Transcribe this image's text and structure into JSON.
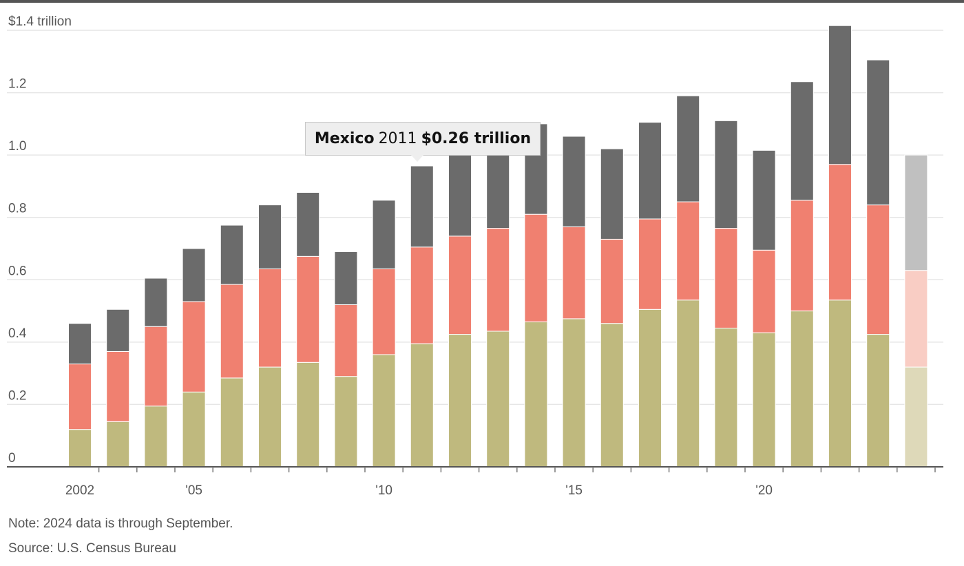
{
  "chart_data": {
    "type": "bar",
    "stacked": true,
    "y_tick_labels": [
      "0",
      "0.2",
      "0.4",
      "0.6",
      "0.8",
      "1.0",
      "1.2",
      "$1.4 trillion"
    ],
    "y_ticks": [
      0,
      0.2,
      0.4,
      0.6,
      0.8,
      1.0,
      1.2,
      1.4
    ],
    "ylim": [
      0,
      1.4
    ],
    "x_tick_labels": [
      {
        "year": 2002,
        "label": "2002"
      },
      {
        "year": 2005,
        "label": "'05"
      },
      {
        "year": 2010,
        "label": "'10"
      },
      {
        "year": 2015,
        "label": "'15"
      },
      {
        "year": 2020,
        "label": "'20"
      }
    ],
    "categories": [
      2002,
      2003,
      2004,
      2005,
      2006,
      2007,
      2008,
      2009,
      2010,
      2011,
      2012,
      2013,
      2014,
      2015,
      2016,
      2017,
      2018,
      2019,
      2020,
      2021,
      2022,
      2023,
      2024
    ],
    "series": [
      {
        "values": [
          0.12,
          0.145,
          0.195,
          0.24,
          0.285,
          0.32,
          0.335,
          0.29,
          0.36,
          0.395,
          0.425,
          0.435,
          0.465,
          0.475,
          0.46,
          0.505,
          0.535,
          0.445,
          0.43,
          0.5,
          0.535,
          0.425,
          0.32
        ],
        "color": "#bfb97e",
        "partial_color": "#ded9b9"
      },
      {
        "values": [
          0.21,
          0.225,
          0.255,
          0.29,
          0.3,
          0.315,
          0.34,
          0.23,
          0.275,
          0.31,
          0.315,
          0.33,
          0.345,
          0.295,
          0.27,
          0.29,
          0.315,
          0.32,
          0.265,
          0.355,
          0.435,
          0.415,
          0.31
        ],
        "color": "#f08070",
        "partial_color": "#f9cdc4"
      },
      {
        "values": [
          0.13,
          0.135,
          0.155,
          0.17,
          0.19,
          0.205,
          0.205,
          0.17,
          0.22,
          0.26,
          0.265,
          0.25,
          0.29,
          0.29,
          0.29,
          0.31,
          0.34,
          0.345,
          0.32,
          0.38,
          0.445,
          0.465,
          0.37
        ],
        "color": "#6b6b6b",
        "partial_color": "#c0c0c0"
      }
    ],
    "partial_year": 2024,
    "tooltip": {
      "country": "Mexico",
      "year": "2011",
      "value": "$0.26 trillion"
    },
    "note": "Note: 2024 data is through September.",
    "source": "Source: U.S. Census Bureau",
    "grid": true
  }
}
